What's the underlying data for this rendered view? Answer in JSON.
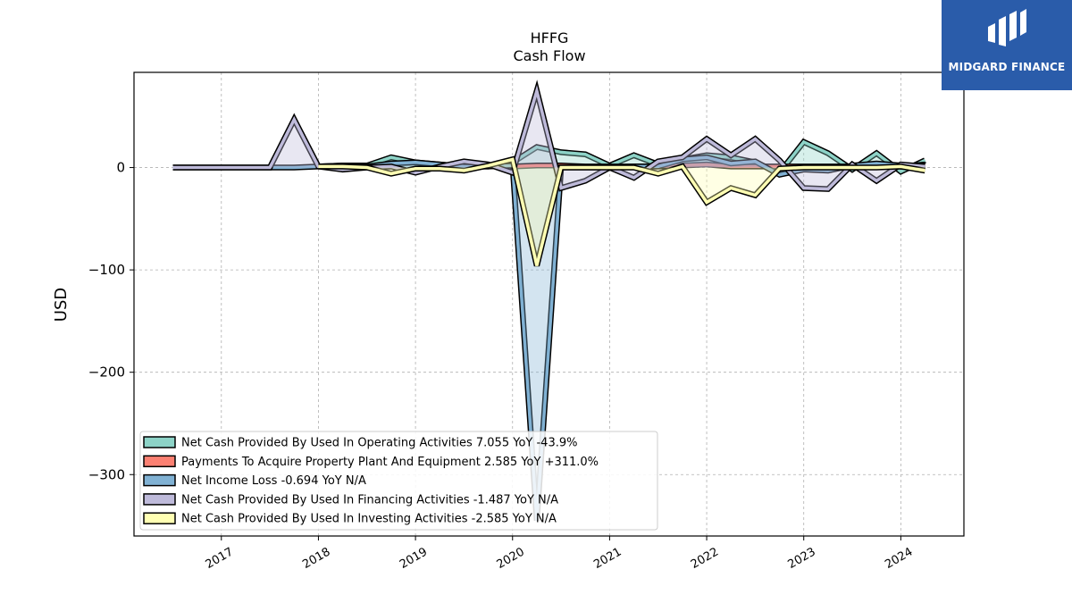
{
  "logo": {
    "text": "MIDGARD FINANCE",
    "color": "#2a5caa"
  },
  "chart_data": {
    "type": "area",
    "title": "HFFG",
    "subtitle": "Cash Flow",
    "xlabel": "",
    "ylabel": "USD",
    "xlim": [
      2016.1,
      2024.65
    ],
    "ylim": [
      -360,
      93
    ],
    "y_ticks": [
      0,
      -100,
      -200,
      -300
    ],
    "y_tick_labels": [
      "0",
      "−100",
      "−200",
      "−300"
    ],
    "x_ticks": [
      2017,
      2018,
      2019,
      2020,
      2021,
      2022,
      2023,
      2024
    ],
    "x_tick_labels": [
      "2017",
      "2018",
      "2019",
      "2020",
      "2021",
      "2022",
      "2023",
      "2024"
    ],
    "grid": true,
    "legend_position": "lower-left",
    "series": [
      {
        "name": "Net Cash Provided By Used In Operating Activities",
        "legend": "Net Cash Provided By Used In Operating Activities  7.055 YoY -43.9%",
        "color": "#8dd3c7",
        "x": [
          2018.0,
          2018.25,
          2018.5,
          2018.75,
          2019.0,
          2019.25,
          2019.5,
          2019.75,
          2020.0,
          2020.25,
          2020.5,
          2020.75,
          2021.0,
          2021.25,
          2021.5,
          2021.75,
          2022.0,
          2022.25,
          2022.5,
          2022.75,
          2023.0,
          2023.25,
          2023.5,
          2023.75,
          2024.0,
          2024.25
        ],
        "y": [
          1,
          2,
          2,
          10,
          5,
          3,
          1,
          1,
          5,
          20,
          15,
          13,
          2,
          12,
          3,
          8,
          12,
          10,
          5,
          -5,
          25,
          14,
          -2,
          14,
          -4,
          7
        ]
      },
      {
        "name": "Payments To Acquire Property Plant And Equipment",
        "legend": "Payments To Acquire Property Plant And Equipment  2.585 YoY +311.0%",
        "color": "#fb8072",
        "x": [
          2020.0,
          2020.25,
          2020.5,
          2020.75,
          2021.0,
          2021.25,
          2021.5,
          2021.75,
          2022.0,
          2022.25,
          2022.5,
          2022.75,
          2023.0,
          2023.25,
          2023.5,
          2023.75,
          2024.0,
          2024.25
        ],
        "y": [
          1,
          2,
          2,
          1,
          1,
          1,
          1,
          2,
          3,
          1,
          1,
          1,
          1,
          1,
          1,
          1,
          1,
          3
        ]
      },
      {
        "name": "Net Income Loss",
        "legend": "Net Income Loss  -0.694 YoY N/A",
        "color": "#80b1d3",
        "x": [
          2016.5,
          2016.75,
          2017.0,
          2017.25,
          2017.5,
          2017.75,
          2018.0,
          2018.25,
          2018.5,
          2018.75,
          2019.0,
          2019.25,
          2019.5,
          2019.75,
          2020.0,
          2020.25,
          2020.5,
          2020.75,
          2021.0,
          2021.25,
          2021.5,
          2021.75,
          2022.0,
          2022.25,
          2022.5,
          2022.75,
          2023.0,
          2023.25,
          2023.5,
          2023.75,
          2024.0,
          2024.25
        ],
        "y": [
          0,
          0,
          0,
          0,
          0,
          0,
          1,
          2,
          1,
          4,
          5,
          3,
          1,
          1,
          2,
          -345,
          0,
          0,
          0,
          1,
          1,
          8,
          10,
          4,
          6,
          -7,
          -2,
          -3,
          2,
          4,
          2,
          2
        ]
      },
      {
        "name": "Net Cash Provided By Used In Financing Activities",
        "legend": "Net Cash Provided By Used In Financing Activities  -1.487 YoY N/A",
        "color": "#bebada",
        "x": [
          2016.5,
          2016.75,
          2017.0,
          2017.25,
          2017.5,
          2017.75,
          2018.0,
          2018.25,
          2018.5,
          2018.75,
          2019.0,
          2019.25,
          2019.5,
          2019.75,
          2020.0,
          2020.25,
          2020.5,
          2020.75,
          2021.0,
          2021.25,
          2021.5,
          2021.75,
          2022.0,
          2022.25,
          2022.5,
          2022.75,
          2023.0,
          2023.25,
          2023.5,
          2023.75,
          2024.0,
          2024.25
        ],
        "y": [
          0,
          0,
          0,
          0,
          0,
          47,
          1,
          -2,
          0,
          1,
          -5,
          1,
          6,
          3,
          -5,
          75,
          -20,
          -13,
          0,
          -10,
          6,
          10,
          28,
          12,
          28,
          7,
          -20,
          -21,
          3,
          -13,
          3,
          1
        ]
      },
      {
        "name": "Net Cash Provided By Used In Investing Activities",
        "legend": "Net Cash Provided By Used In Investing Activities  -2.585 YoY N/A",
        "color": "#ffffb3",
        "x": [
          2018.0,
          2018.25,
          2018.5,
          2018.75,
          2019.0,
          2019.25,
          2019.5,
          2019.75,
          2020.0,
          2020.25,
          2020.5,
          2020.75,
          2021.0,
          2021.25,
          2021.5,
          2021.75,
          2022.0,
          2022.25,
          2022.5,
          2022.75,
          2023.0,
          2023.25,
          2023.5,
          2023.75,
          2024.0,
          2024.25
        ],
        "y": [
          1,
          1,
          0,
          -6,
          -1,
          -1,
          -3,
          2,
          8,
          -96,
          0,
          0,
          0,
          0,
          -6,
          1,
          -34,
          -20,
          -27,
          -1,
          0,
          0,
          0,
          0,
          1,
          -3
        ]
      }
    ]
  }
}
